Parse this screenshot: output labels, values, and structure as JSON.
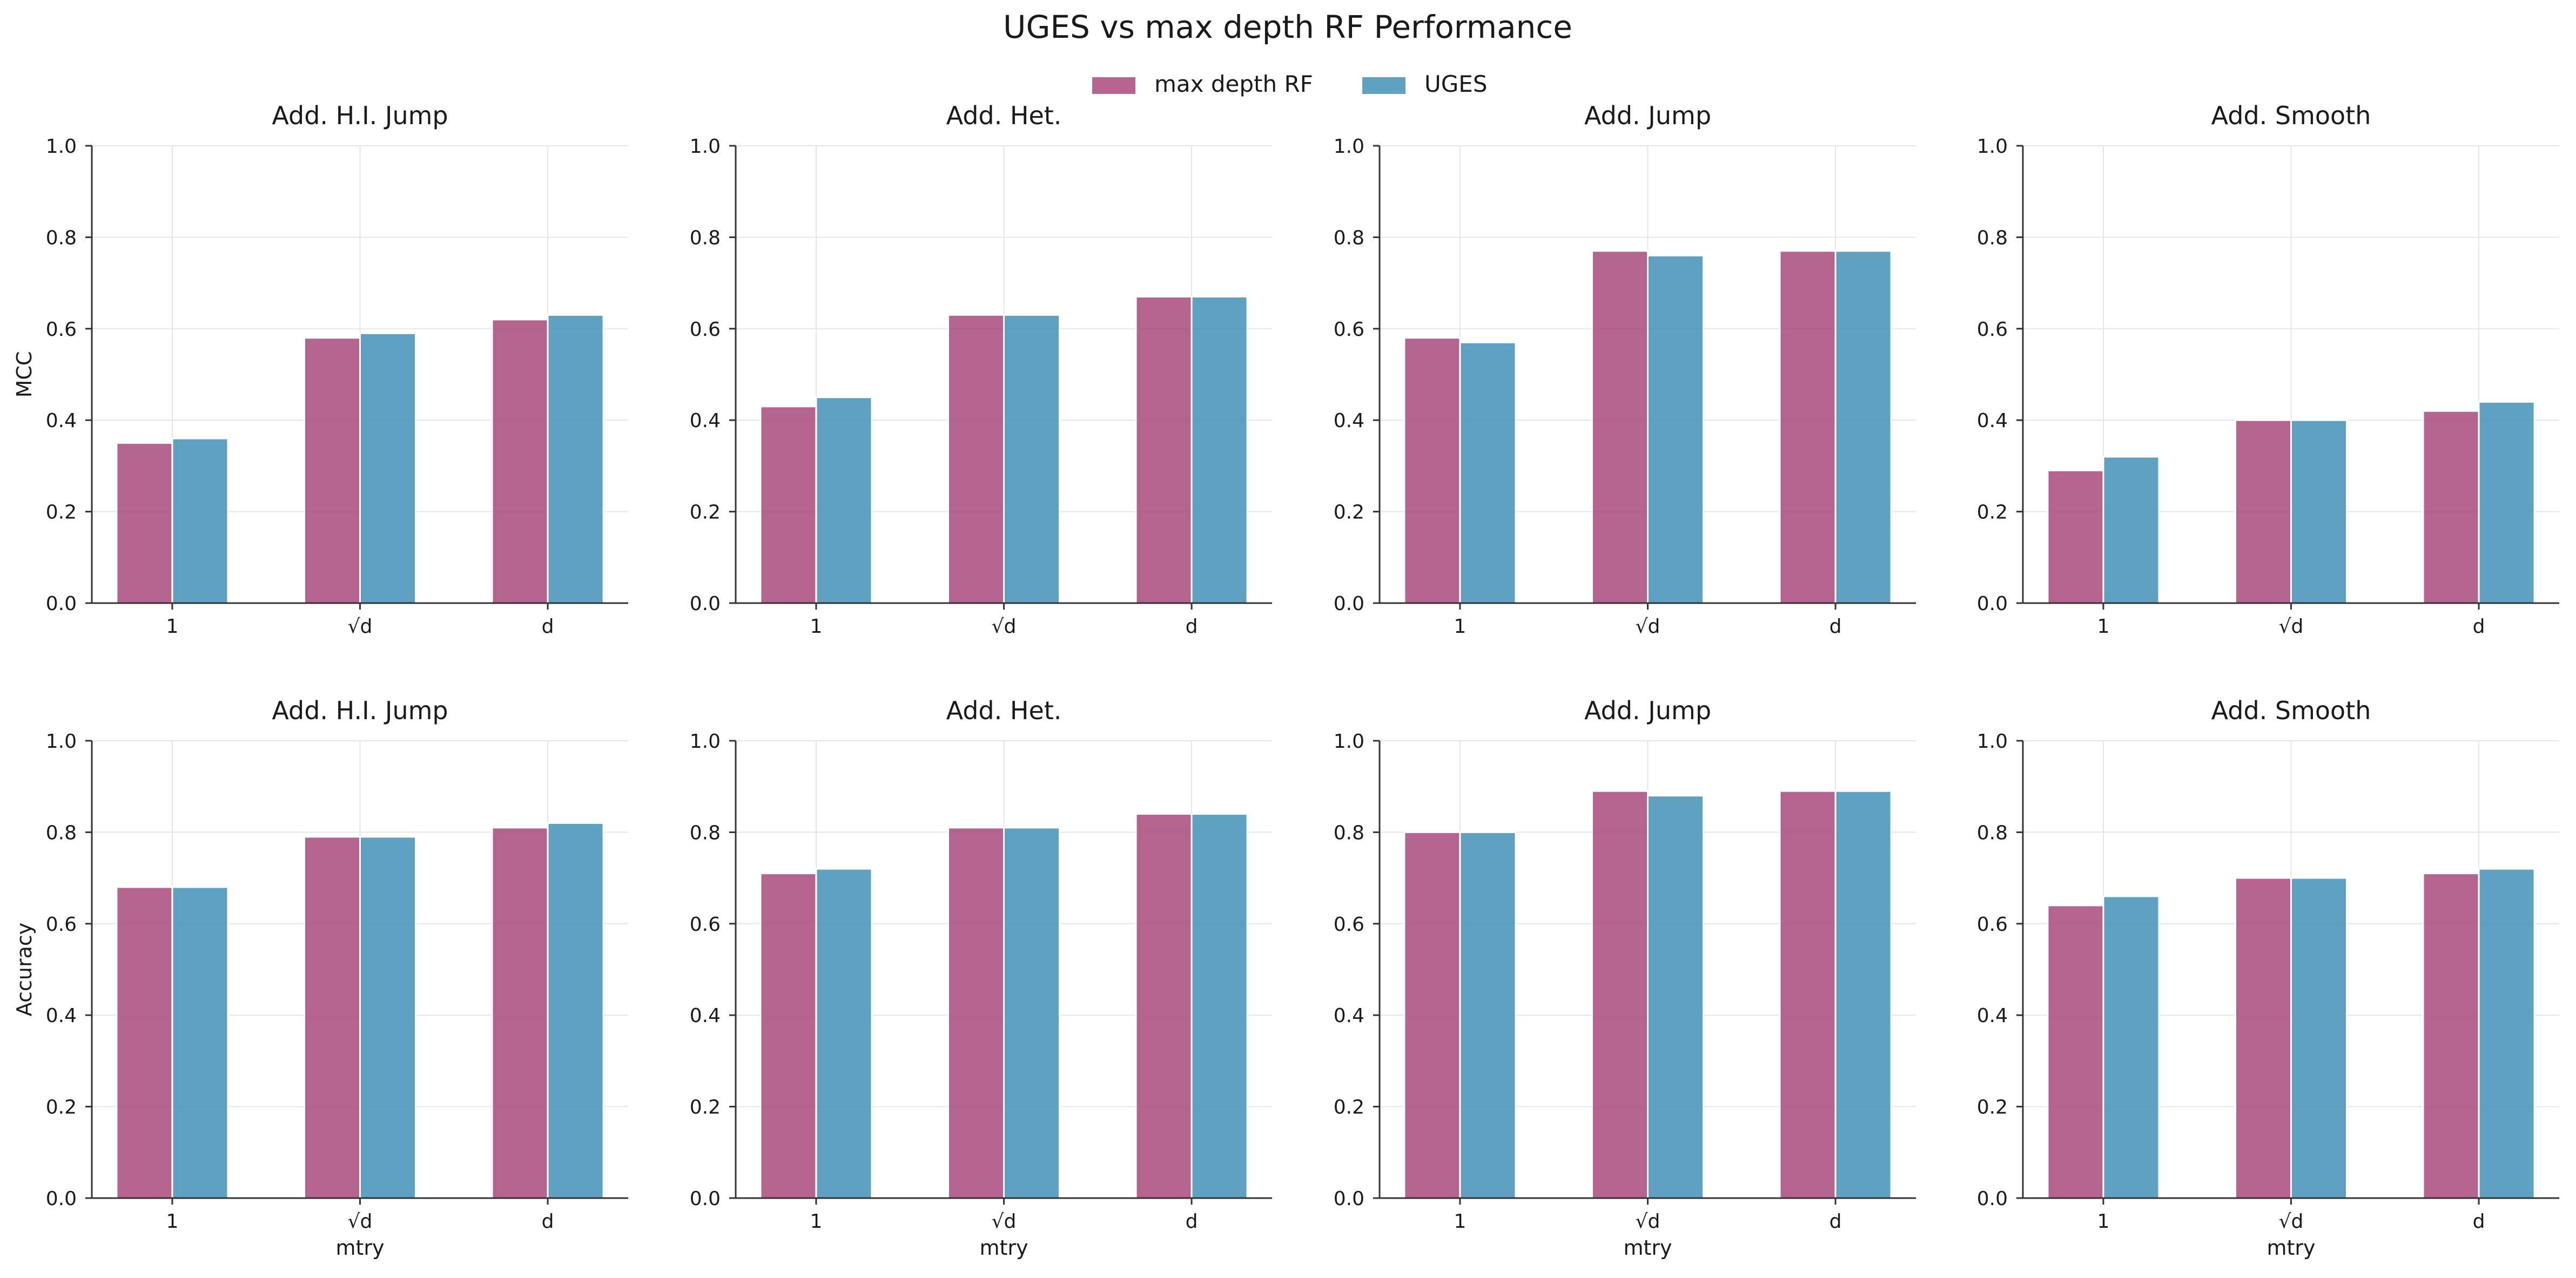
{
  "title": "UGES vs max depth RF Performance",
  "legend": {
    "placement": "top-center",
    "items": [
      {
        "label": "max depth RF",
        "color": "#aa4f7e"
      },
      {
        "label": "UGES",
        "color": "#4a94b8"
      }
    ]
  },
  "chart_data": [
    {
      "type": "bar",
      "title": "Add. H.I. Jump",
      "xlabel": "",
      "ylabel": "MCC",
      "categories": [
        "1",
        "√d",
        "d"
      ],
      "ylim": [
        0,
        1
      ],
      "yticks": [
        "0.0",
        "0.2",
        "0.4",
        "0.6",
        "0.8",
        "1.0"
      ],
      "grid": true,
      "series": [
        {
          "name": "max depth RF",
          "values": [
            0.35,
            0.58,
            0.62
          ]
        },
        {
          "name": "UGES",
          "values": [
            0.36,
            0.59,
            0.63
          ]
        }
      ]
    },
    {
      "type": "bar",
      "title": "Add. Het.",
      "xlabel": "",
      "ylabel": "",
      "categories": [
        "1",
        "√d",
        "d"
      ],
      "ylim": [
        0,
        1
      ],
      "yticks": [
        "0.0",
        "0.2",
        "0.4",
        "0.6",
        "0.8",
        "1.0"
      ],
      "grid": true,
      "series": [
        {
          "name": "max depth RF",
          "values": [
            0.43,
            0.63,
            0.67
          ]
        },
        {
          "name": "UGES",
          "values": [
            0.45,
            0.63,
            0.67
          ]
        }
      ]
    },
    {
      "type": "bar",
      "title": "Add. Jump",
      "xlabel": "",
      "ylabel": "",
      "categories": [
        "1",
        "√d",
        "d"
      ],
      "ylim": [
        0,
        1
      ],
      "yticks": [
        "0.0",
        "0.2",
        "0.4",
        "0.6",
        "0.8",
        "1.0"
      ],
      "grid": true,
      "series": [
        {
          "name": "max depth RF",
          "values": [
            0.58,
            0.77,
            0.77
          ]
        },
        {
          "name": "UGES",
          "values": [
            0.57,
            0.76,
            0.77
          ]
        }
      ]
    },
    {
      "type": "bar",
      "title": "Add. Smooth",
      "xlabel": "",
      "ylabel": "",
      "categories": [
        "1",
        "√d",
        "d"
      ],
      "ylim": [
        0,
        1
      ],
      "yticks": [
        "0.0",
        "0.2",
        "0.4",
        "0.6",
        "0.8",
        "1.0"
      ],
      "grid": true,
      "series": [
        {
          "name": "max depth RF",
          "values": [
            0.29,
            0.4,
            0.42
          ]
        },
        {
          "name": "UGES",
          "values": [
            0.32,
            0.4,
            0.44
          ]
        }
      ]
    },
    {
      "type": "bar",
      "title": "Add. H.I. Jump",
      "xlabel": "mtry",
      "ylabel": "Accuracy",
      "categories": [
        "1",
        "√d",
        "d"
      ],
      "ylim": [
        0,
        1
      ],
      "yticks": [
        "0.0",
        "0.2",
        "0.4",
        "0.6",
        "0.8",
        "1.0"
      ],
      "grid": true,
      "series": [
        {
          "name": "max depth RF",
          "values": [
            0.68,
            0.79,
            0.81
          ]
        },
        {
          "name": "UGES",
          "values": [
            0.68,
            0.79,
            0.82
          ]
        }
      ]
    },
    {
      "type": "bar",
      "title": "Add. Het.",
      "xlabel": "mtry",
      "ylabel": "",
      "categories": [
        "1",
        "√d",
        "d"
      ],
      "ylim": [
        0,
        1
      ],
      "yticks": [
        "0.0",
        "0.2",
        "0.4",
        "0.6",
        "0.8",
        "1.0"
      ],
      "grid": true,
      "series": [
        {
          "name": "max depth RF",
          "values": [
            0.71,
            0.81,
            0.84
          ]
        },
        {
          "name": "UGES",
          "values": [
            0.72,
            0.81,
            0.84
          ]
        }
      ]
    },
    {
      "type": "bar",
      "title": "Add. Jump",
      "xlabel": "mtry",
      "ylabel": "",
      "categories": [
        "1",
        "√d",
        "d"
      ],
      "ylim": [
        0,
        1
      ],
      "yticks": [
        "0.0",
        "0.2",
        "0.4",
        "0.6",
        "0.8",
        "1.0"
      ],
      "grid": true,
      "series": [
        {
          "name": "max depth RF",
          "values": [
            0.8,
            0.89,
            0.89
          ]
        },
        {
          "name": "UGES",
          "values": [
            0.8,
            0.88,
            0.89
          ]
        }
      ]
    },
    {
      "type": "bar",
      "title": "Add. Smooth",
      "xlabel": "mtry",
      "ylabel": "",
      "categories": [
        "1",
        "√d",
        "d"
      ],
      "ylim": [
        0,
        1
      ],
      "yticks": [
        "0.0",
        "0.2",
        "0.4",
        "0.6",
        "0.8",
        "1.0"
      ],
      "grid": true,
      "series": [
        {
          "name": "max depth RF",
          "values": [
            0.64,
            0.7,
            0.71
          ]
        },
        {
          "name": "UGES",
          "values": [
            0.66,
            0.7,
            0.72
          ]
        }
      ]
    }
  ]
}
